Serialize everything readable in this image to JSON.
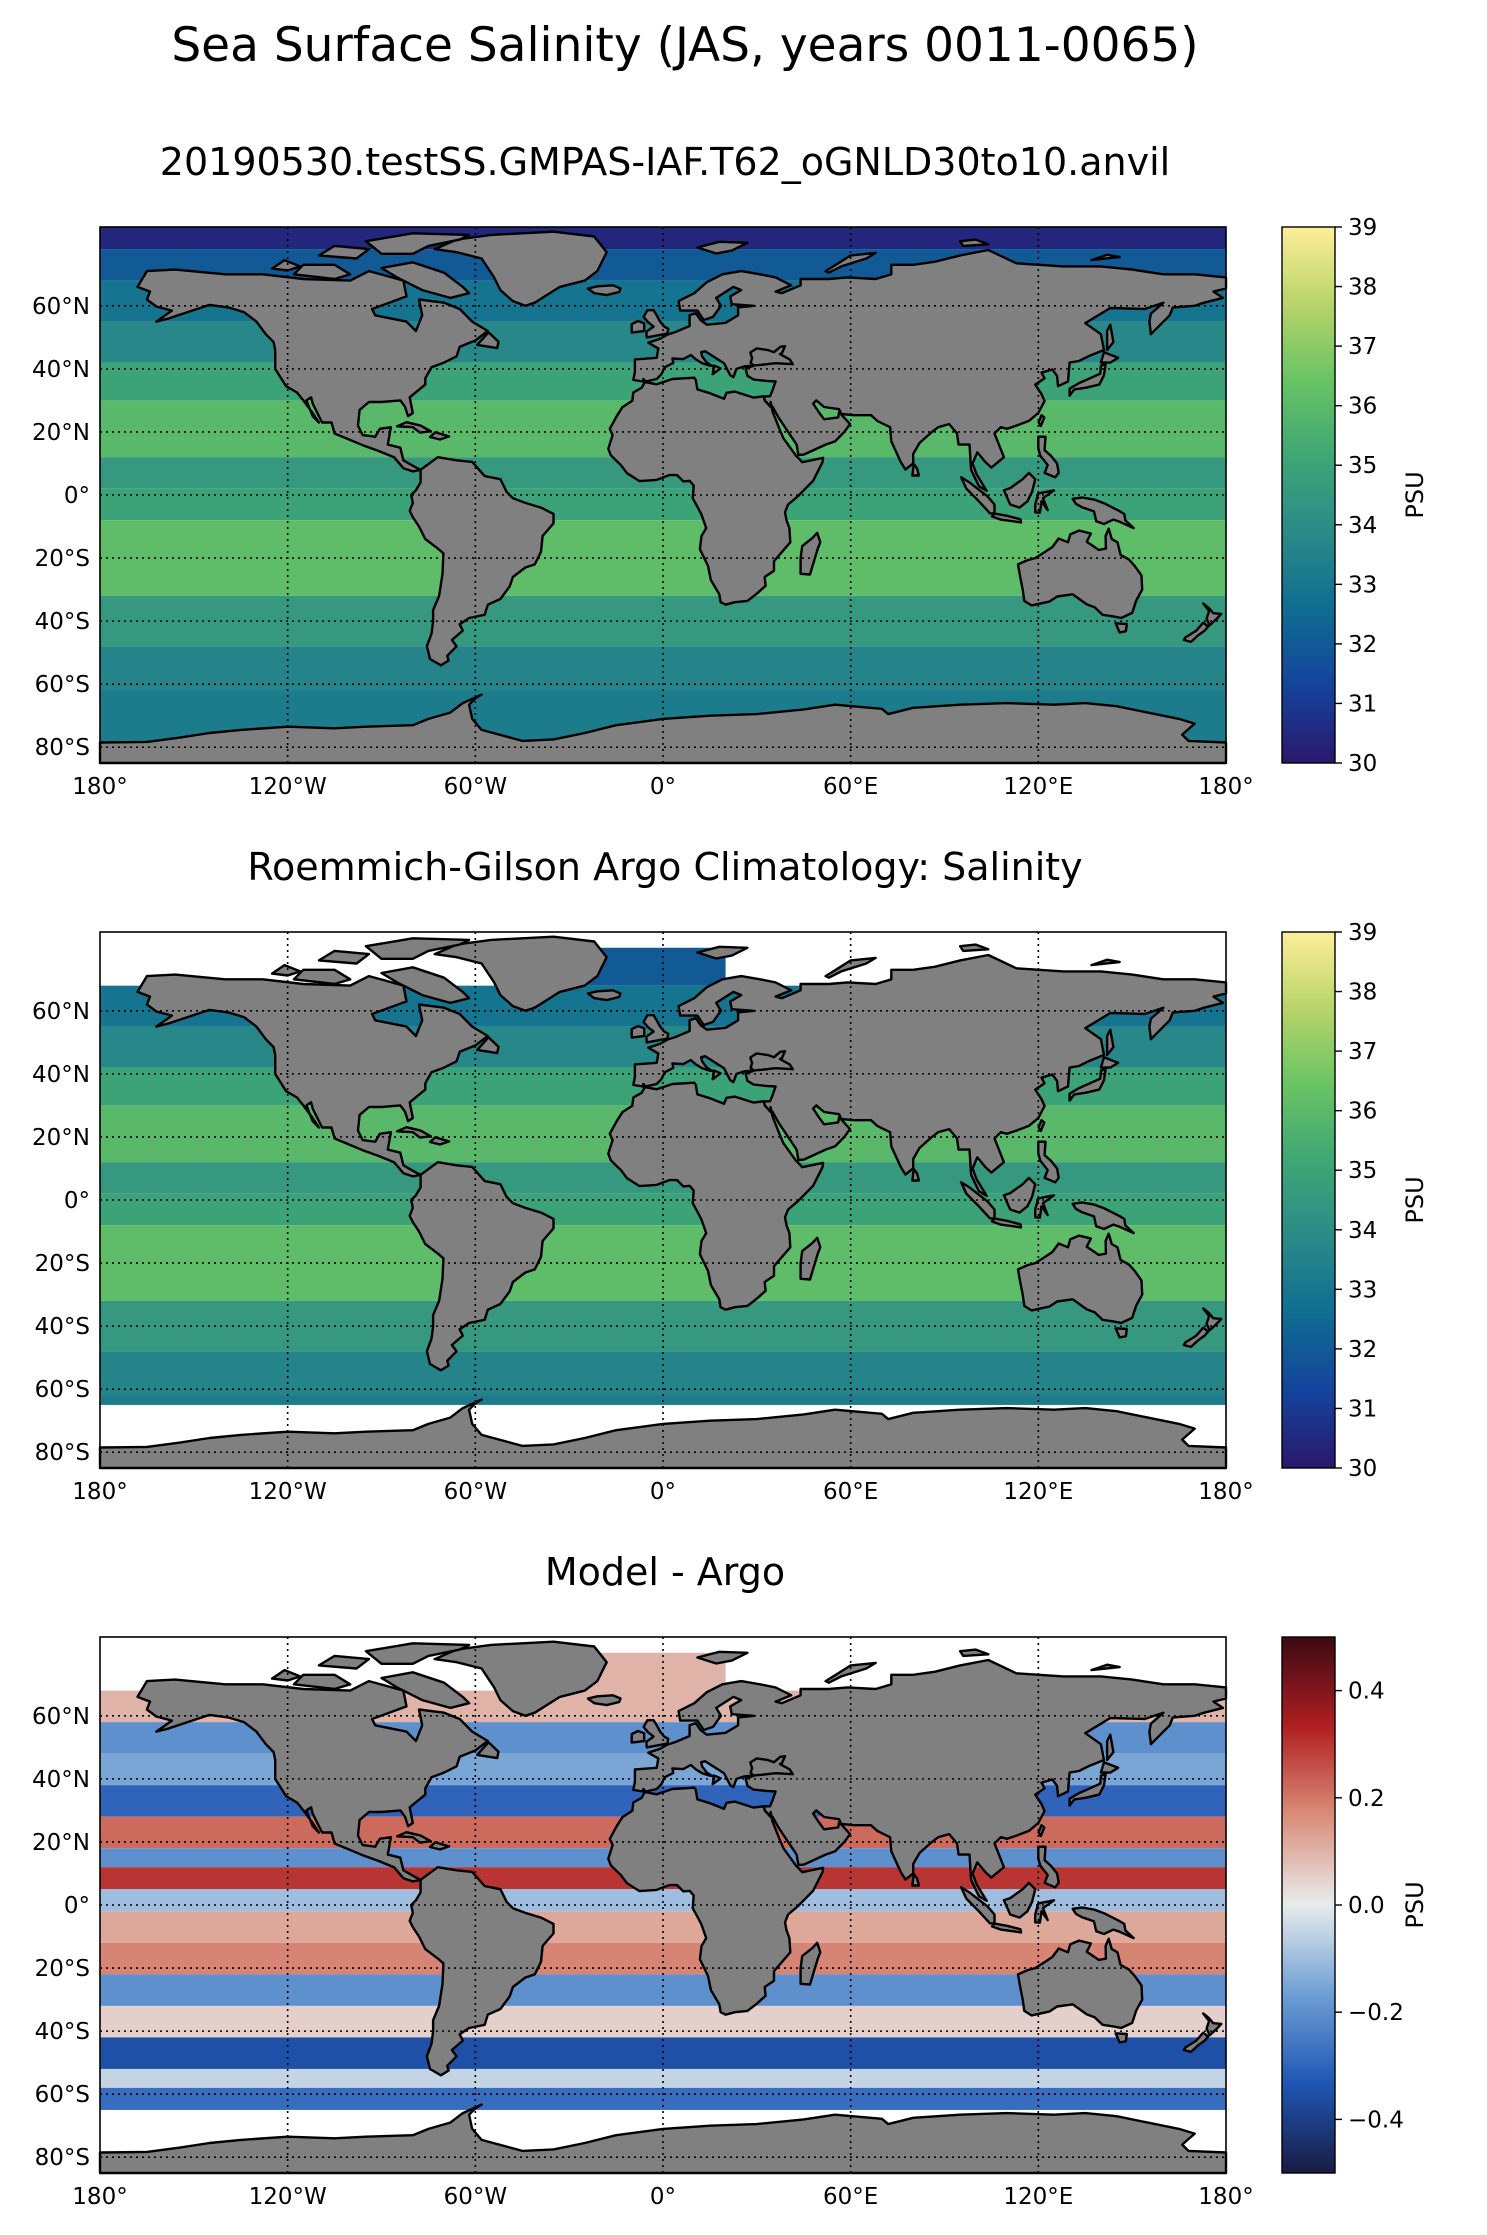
{
  "suptitle": "Sea Surface Salinity (JAS, years 0011-0065)",
  "colors": {
    "land": "#808080",
    "nodata": "#ffffff",
    "haline": [
      "#2a186c",
      "#14439c",
      "#0f6d91",
      "#2a8a88",
      "#3fa675",
      "#69c364",
      "#b8d46a",
      "#fdee99"
    ],
    "balance": [
      "#181c43",
      "#1f56b3",
      "#6e9ed4",
      "#e8ecec",
      "#d98d7a",
      "#b01f22",
      "#3c0912"
    ]
  },
  "chart_data": [
    {
      "type": "heatmap",
      "title": "20190530.testSS.GMPAS-IAF.T62_oGNLD30to10.anvil",
      "colormap": "haline",
      "x_ticks": [
        -180,
        -120,
        -60,
        0,
        60,
        120,
        180
      ],
      "x_tick_labels": [
        "180°",
        "120°W",
        "60°W",
        "0°",
        "60°E",
        "120°E",
        "180°"
      ],
      "y_ticks": [
        60,
        40,
        20,
        0,
        -20,
        -40,
        -60,
        -80
      ],
      "y_tick_labels": [
        "60°N",
        "40°N",
        "20°N",
        "0°",
        "20°S",
        "40°S",
        "60°S",
        "80°S"
      ],
      "xlim": [
        -180,
        180
      ],
      "ylim": [
        -85,
        85
      ],
      "grid": true,
      "colorbar": {
        "label": "PSU",
        "range": [
          30,
          39
        ],
        "ticks": [
          30,
          31,
          32,
          33,
          34,
          35,
          36,
          37,
          38,
          39
        ],
        "tick_labels": [
          "30",
          "31",
          "32",
          "33",
          "34",
          "35",
          "36",
          "37",
          "38",
          "39"
        ]
      }
    },
    {
      "type": "heatmap",
      "title": "Roemmich-Gilson Argo Climatology: Salinity",
      "colormap": "haline",
      "x_ticks": [
        -180,
        -120,
        -60,
        0,
        60,
        120,
        180
      ],
      "x_tick_labels": [
        "180°",
        "120°W",
        "60°W",
        "0°",
        "60°E",
        "120°E",
        "180°"
      ],
      "y_ticks": [
        60,
        40,
        20,
        0,
        -20,
        -40,
        -60,
        -80
      ],
      "y_tick_labels": [
        "60°N",
        "40°N",
        "20°N",
        "0°",
        "20°S",
        "40°S",
        "60°S",
        "80°S"
      ],
      "xlim": [
        -180,
        180
      ],
      "ylim": [
        -85,
        85
      ],
      "grid": true,
      "colorbar": {
        "label": "PSU",
        "range": [
          30,
          39
        ],
        "ticks": [
          30,
          31,
          32,
          33,
          34,
          35,
          36,
          37,
          38,
          39
        ],
        "tick_labels": [
          "30",
          "31",
          "32",
          "33",
          "34",
          "35",
          "36",
          "37",
          "38",
          "39"
        ]
      }
    },
    {
      "type": "heatmap",
      "title": "Model - Argo",
      "colormap": "balance",
      "x_ticks": [
        -180,
        -120,
        -60,
        0,
        60,
        120,
        180
      ],
      "x_tick_labels": [
        "180°",
        "120°W",
        "60°W",
        "0°",
        "60°E",
        "120°E",
        "180°"
      ],
      "y_ticks": [
        60,
        40,
        20,
        0,
        -20,
        -40,
        -60,
        -80
      ],
      "y_tick_labels": [
        "60°N",
        "40°N",
        "20°N",
        "0°",
        "20°S",
        "40°S",
        "60°S",
        "80°S"
      ],
      "xlim": [
        -180,
        180
      ],
      "ylim": [
        -85,
        85
      ],
      "grid": true,
      "colorbar": {
        "label": "PSU",
        "range": [
          -0.5,
          0.5
        ],
        "ticks": [
          -0.4,
          -0.2,
          0.0,
          0.2,
          0.4
        ],
        "tick_labels": [
          "−0.4",
          "−0.2",
          "0.0",
          "0.2",
          "0.4"
        ]
      }
    }
  ]
}
